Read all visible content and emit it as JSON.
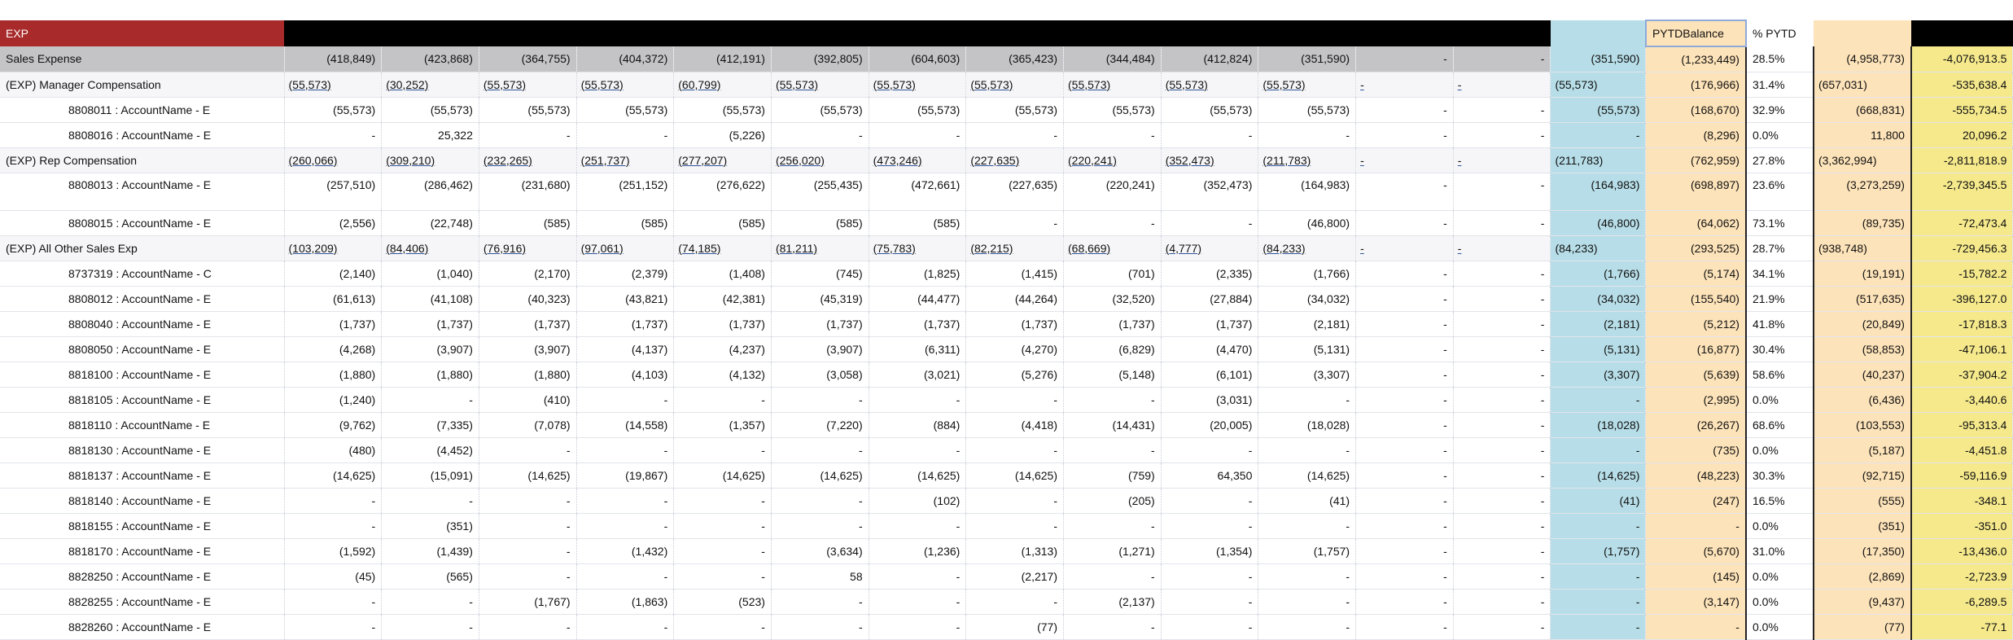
{
  "header": {
    "title": "EXP",
    "pytd_balance": "PYTDBalance",
    "pct_pytd": "% PYTD"
  },
  "total": {
    "label": "Sales Expense",
    "cells": [
      "(418,849)",
      "(423,868)",
      "(364,755)",
      "(404,372)",
      "(412,191)",
      "(392,805)",
      "(604,603)",
      "(365,423)",
      "(344,484)",
      "(412,824)",
      "(351,590)",
      "-",
      "-",
      "(351,590)",
      "(1,233,449)",
      "28.5%",
      "(4,958,773)",
      "-4,076,913.5"
    ]
  },
  "groups": [
    {
      "label": "(EXP) Manager Compensation",
      "cells": [
        "(55,573)",
        "(30,252)",
        "(55,573)",
        "(55,573)",
        "(60,799)",
        "(55,573)",
        "(55,573)",
        "(55,573)",
        "(55,573)",
        "(55,573)",
        "(55,573)",
        "-",
        "-",
        "(55,573)",
        "(176,966)",
        "31.4%",
        "(657,031)",
        "-535,638.4"
      ],
      "accounts": [
        {
          "label": "8808011 : AccountName - E",
          "cells": [
            "(55,573)",
            "(55,573)",
            "(55,573)",
            "(55,573)",
            "(55,573)",
            "(55,573)",
            "(55,573)",
            "(55,573)",
            "(55,573)",
            "(55,573)",
            "(55,573)",
            "-",
            "-",
            "(55,573)",
            "(168,670)",
            "32.9%",
            "(668,831)",
            "-555,734.5"
          ]
        },
        {
          "label": "8808016 : AccountName - E",
          "cells": [
            "-",
            "25,322",
            "-",
            "-",
            "(5,226)",
            "-",
            "-",
            "-",
            "-",
            "-",
            "-",
            "-",
            "-",
            "-",
            "(8,296)",
            "0.0%",
            "11,800",
            "20,096.2"
          ]
        }
      ]
    },
    {
      "label": "(EXP) Rep Compensation",
      "cells": [
        "(260,066)",
        "(309,210)",
        "(232,265)",
        "(251,737)",
        "(277,207)",
        "(256,020)",
        "(473,246)",
        "(227,635)",
        "(220,241)",
        "(352,473)",
        "(211,783)",
        "-",
        "-",
        "(211,783)",
        "(762,959)",
        "27.8%",
        "(3,362,994)",
        "-2,811,818.9"
      ],
      "accounts": [
        {
          "label": "8808013 : AccountName - E",
          "cells": [
            "(257,510)",
            "(286,462)",
            "(231,680)",
            "(251,152)",
            "(276,622)",
            "(255,435)",
            "(472,661)",
            "(227,635)",
            "(220,241)",
            "(352,473)",
            "(164,983)",
            "-",
            "-",
            "(164,983)",
            "(698,897)",
            "23.6%",
            "(3,273,259)",
            "-2,739,345.5"
          ]
        },
        {
          "label": "8808015 : AccountName - E",
          "cells": [
            "(2,556)",
            "(22,748)",
            "(585)",
            "(585)",
            "(585)",
            "(585)",
            "(585)",
            "-",
            "-",
            "-",
            "(46,800)",
            "-",
            "-",
            "(46,800)",
            "(64,062)",
            "73.1%",
            "(89,735)",
            "-72,473.4"
          ]
        }
      ]
    },
    {
      "label": "(EXP) All Other Sales Exp",
      "cells": [
        "(103,209)",
        "(84,406)",
        "(76,916)",
        "(97,061)",
        "(74,185)",
        "(81,211)",
        "(75,783)",
        "(82,215)",
        "(68,669)",
        "(4,777)",
        "(84,233)",
        "-",
        "-",
        "(84,233)",
        "(293,525)",
        "28.7%",
        "(938,748)",
        "-729,456.3"
      ],
      "accounts": [
        {
          "label": "8737319 : AccountName - C",
          "cells": [
            "(2,140)",
            "(1,040)",
            "(2,170)",
            "(2,379)",
            "(1,408)",
            "(745)",
            "(1,825)",
            "(1,415)",
            "(701)",
            "(2,335)",
            "(1,766)",
            "-",
            "-",
            "(1,766)",
            "(5,174)",
            "34.1%",
            "(19,191)",
            "-15,782.2"
          ]
        },
        {
          "label": "8808012 : AccountName - E",
          "cells": [
            "(61,613)",
            "(41,108)",
            "(40,323)",
            "(43,821)",
            "(42,381)",
            "(45,319)",
            "(44,477)",
            "(44,264)",
            "(32,520)",
            "(27,884)",
            "(34,032)",
            "-",
            "-",
            "(34,032)",
            "(155,540)",
            "21.9%",
            "(517,635)",
            "-396,127.0"
          ]
        },
        {
          "label": "8808040 : AccountName - E",
          "cells": [
            "(1,737)",
            "(1,737)",
            "(1,737)",
            "(1,737)",
            "(1,737)",
            "(1,737)",
            "(1,737)",
            "(1,737)",
            "(1,737)",
            "(1,737)",
            "(2,181)",
            "-",
            "-",
            "(2,181)",
            "(5,212)",
            "41.8%",
            "(20,849)",
            "-17,818.3"
          ]
        },
        {
          "label": "8808050 : AccountName - E",
          "cells": [
            "(4,268)",
            "(3,907)",
            "(3,907)",
            "(4,137)",
            "(4,237)",
            "(3,907)",
            "(6,311)",
            "(4,270)",
            "(6,829)",
            "(4,470)",
            "(5,131)",
            "-",
            "-",
            "(5,131)",
            "(16,877)",
            "30.4%",
            "(58,853)",
            "-47,106.1"
          ]
        },
        {
          "label": "8818100 : AccountName - E",
          "cells": [
            "(1,880)",
            "(1,880)",
            "(1,880)",
            "(4,103)",
            "(4,132)",
            "(3,058)",
            "(3,021)",
            "(5,276)",
            "(5,148)",
            "(6,101)",
            "(3,307)",
            "-",
            "-",
            "(3,307)",
            "(5,639)",
            "58.6%",
            "(40,237)",
            "-37,904.2"
          ]
        },
        {
          "label": "8818105 : AccountName - E",
          "cells": [
            "(1,240)",
            "-",
            "(410)",
            "-",
            "-",
            "-",
            "-",
            "-",
            "-",
            "(3,031)",
            "-",
            "-",
            "-",
            "-",
            "(2,995)",
            "0.0%",
            "(6,436)",
            "-3,440.6"
          ]
        },
        {
          "label": "8818110 : AccountName - E",
          "cells": [
            "(9,762)",
            "(7,335)",
            "(7,078)",
            "(14,558)",
            "(1,357)",
            "(7,220)",
            "(884)",
            "(4,418)",
            "(14,431)",
            "(20,005)",
            "(18,028)",
            "-",
            "-",
            "(18,028)",
            "(26,267)",
            "68.6%",
            "(103,553)",
            "-95,313.4"
          ]
        },
        {
          "label": "8818130 : AccountName - E",
          "cells": [
            "(480)",
            "(4,452)",
            "-",
            "-",
            "-",
            "-",
            "-",
            "-",
            "-",
            "-",
            "-",
            "-",
            "-",
            "-",
            "(735)",
            "0.0%",
            "(5,187)",
            "-4,451.8"
          ]
        },
        {
          "label": "8818137 : AccountName - E",
          "cells": [
            "(14,625)",
            "(15,091)",
            "(14,625)",
            "(19,867)",
            "(14,625)",
            "(14,625)",
            "(14,625)",
            "(14,625)",
            "(759)",
            "64,350",
            "(14,625)",
            "-",
            "-",
            "(14,625)",
            "(48,223)",
            "30.3%",
            "(92,715)",
            "-59,116.9"
          ]
        },
        {
          "label": "8818140 : AccountName - E",
          "cells": [
            "-",
            "-",
            "-",
            "-",
            "-",
            "-",
            "(102)",
            "-",
            "(205)",
            "-",
            "(41)",
            "-",
            "-",
            "(41)",
            "(247)",
            "16.5%",
            "(555)",
            "-348.1"
          ]
        },
        {
          "label": "8818155 : AccountName - E",
          "cells": [
            "-",
            "(351)",
            "-",
            "-",
            "-",
            "-",
            "-",
            "-",
            "-",
            "-",
            "-",
            "-",
            "-",
            "-",
            "-",
            "0.0%",
            "(351)",
            "-351.0"
          ]
        },
        {
          "label": "8818170 : AccountName - E",
          "cells": [
            "(1,592)",
            "(1,439)",
            "-",
            "(1,432)",
            "-",
            "(3,634)",
            "(1,236)",
            "(1,313)",
            "(1,271)",
            "(1,354)",
            "(1,757)",
            "-",
            "-",
            "(1,757)",
            "(5,670)",
            "31.0%",
            "(17,350)",
            "-13,436.0"
          ]
        },
        {
          "label": "8828250 : AccountName - E",
          "cells": [
            "(45)",
            "(565)",
            "-",
            "-",
            "-",
            "58",
            "-",
            "(2,217)",
            "-",
            "-",
            "-",
            "-",
            "-",
            "-",
            "(145)",
            "0.0%",
            "(2,869)",
            "-2,723.9"
          ]
        },
        {
          "label": "8828255 : AccountName - E",
          "cells": [
            "-",
            "-",
            "(1,767)",
            "(1,863)",
            "(523)",
            "-",
            "-",
            "-",
            "(2,137)",
            "-",
            "-",
            "-",
            "-",
            "-",
            "(3,147)",
            "0.0%",
            "(9,437)",
            "-6,289.5"
          ]
        },
        {
          "label": "8828260 : AccountName - E",
          "cells": [
            "-",
            "-",
            "-",
            "-",
            "-",
            "-",
            "-",
            "(77)",
            "-",
            "-",
            "-",
            "-",
            "-",
            "-",
            "-",
            "0.0%",
            "(77)",
            "-77.1"
          ]
        }
      ]
    }
  ]
}
